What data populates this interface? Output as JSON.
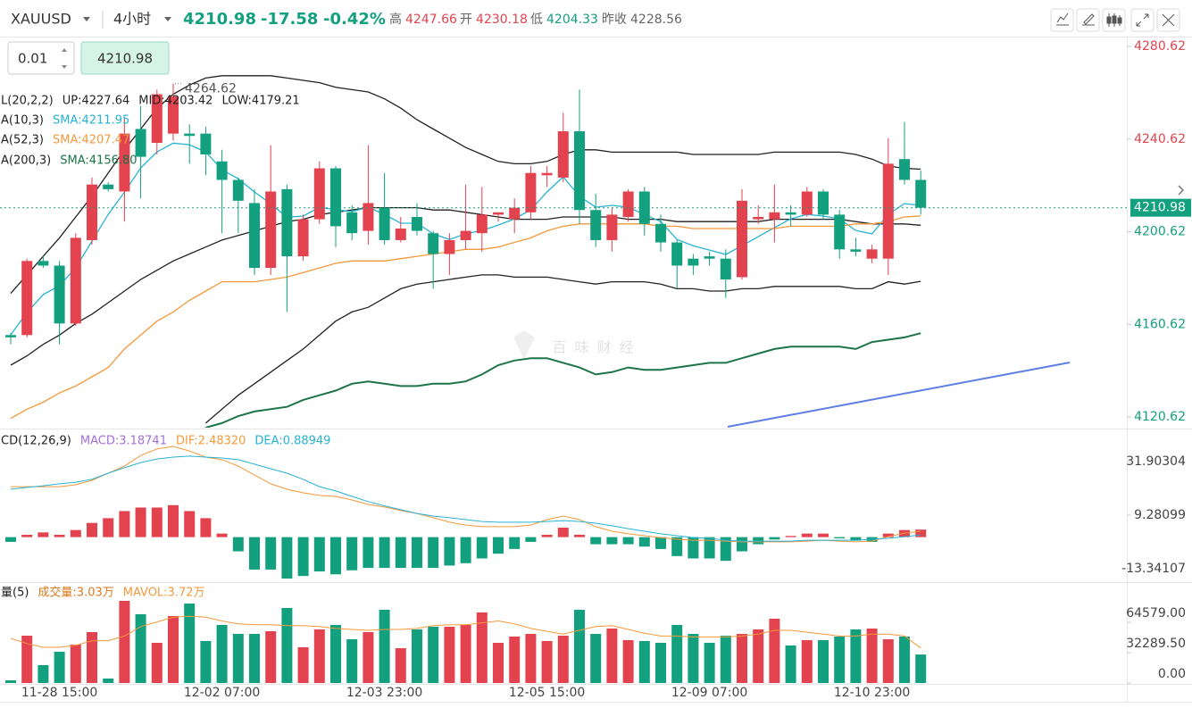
{
  "header": {
    "symbol": "XAUUSD",
    "interval": "4小时",
    "price": "4210.98",
    "change": "-17.58",
    "change_percent": "-0.42%",
    "stats": [
      {
        "label": "高",
        "value": "4247.66"
      },
      {
        "label": "开",
        "value": "4230.18"
      },
      {
        "label": "低",
        "value": "4204.33"
      },
      {
        "label": "昨收",
        "value": "4228.56"
      }
    ]
  },
  "order_inputs": {
    "lots": "0.01",
    "price": "4210.98"
  },
  "watermark": "百 味 财 经",
  "chart_data": [
    {
      "type": "candlestick",
      "up_color": "#e2434f",
      "down_color": "#13a07e",
      "ylim": [
        4116.4,
        4284.5
      ],
      "yticks": [
        4280.62,
        4240.62,
        4200.62,
        4160.62,
        4120.62
      ],
      "high_label": "4264.62",
      "last_price_label": "4210.98",
      "indicator_labels": [
        "L(20,2,2)",
        "A(10,3)",
        "A(52,3)",
        "A(200,3)"
      ],
      "open": [
        4156,
        4156,
        4188,
        4186,
        4161,
        4197,
        4221,
        4218,
        4245,
        4239,
        4243,
        4243,
        4243,
        4231,
        4223,
        4213,
        4185,
        4219,
        4190,
        4206,
        4228,
        4209,
        4201,
        4211,
        4197,
        4207,
        4200,
        4191,
        4197,
        4200,
        4208,
        4206,
        4209,
        4225,
        4224,
        4244,
        4210,
        4197,
        4207,
        4218,
        4204,
        4196,
        4189,
        4190,
        4189,
        4181,
        4206,
        4206,
        4209,
        4208,
        4218,
        4208,
        4193,
        4189,
        4189,
        4232,
        4223
      ],
      "high": [
        4157,
        4189,
        4190,
        4188,
        4200,
        4224,
        4222,
        4250,
        4255,
        4262,
        4264.62,
        4247,
        4246,
        4236,
        4224,
        4219,
        4238,
        4221,
        4208,
        4231,
        4229,
        4212,
        4238,
        4226,
        4207,
        4213,
        4201,
        4200,
        4221,
        4220,
        4209,
        4215,
        4229,
        4229,
        4252,
        4262,
        4217,
        4211,
        4219,
        4220,
        4208,
        4197,
        4191,
        4192,
        4193,
        4219,
        4212,
        4221,
        4212,
        4220,
        4219,
        4210,
        4198,
        4195,
        4241,
        4248,
        4227
      ],
      "low": [
        4152,
        4155,
        4185,
        4152,
        4160,
        4195,
        4218,
        4205,
        4215,
        4234,
        4240,
        4230,
        4225,
        4200,
        4200,
        4182,
        4182,
        4166,
        4188,
        4204,
        4194,
        4197,
        4195,
        4195,
        4196,
        4199,
        4176,
        4182,
        4193,
        4192,
        4205,
        4200,
        4206,
        4220,
        4222,
        4204,
        4194,
        4192,
        4205,
        4199,
        4192,
        4176,
        4182,
        4186,
        4172,
        4180,
        4204,
        4196,
        4203,
        4207,
        4206,
        4189,
        4190,
        4187,
        4182,
        4221,
        4208
      ],
      "close": [
        4155,
        4188,
        4186,
        4161,
        4198,
        4221,
        4219,
        4243,
        4233,
        4260,
        4259,
        4242,
        4234,
        4223,
        4214,
        4185,
        4218,
        4190,
        4206,
        4228,
        4203,
        4200,
        4213,
        4197,
        4202,
        4201,
        4191,
        4197,
        4201,
        4208,
        4209,
        4211,
        4226,
        4226,
        4244,
        4210,
        4197,
        4208,
        4218,
        4204,
        4196,
        4186,
        4186,
        4189,
        4180,
        4214,
        4207,
        4209,
        4208,
        4218,
        4208,
        4193,
        4192,
        4193,
        4230,
        4223,
        4210.98
      ],
      "series": [
        {
          "name": "UP:4227.64",
          "color": "#222222",
          "values": [
            4174,
            4182,
            4190,
            4198,
            4207,
            4216,
            4226,
            4236,
            4245,
            4254,
            4260,
            4264,
            4267,
            4268,
            4268,
            4268,
            4268,
            4267,
            4266,
            4265,
            4263,
            4262,
            4261,
            4258,
            4254,
            4249,
            4245,
            4241,
            4237,
            4234,
            4231,
            4230,
            4230,
            4231,
            4234,
            4236,
            4236,
            4235,
            4235,
            4235,
            4235,
            4235,
            4234,
            4234,
            4234,
            4234,
            4234,
            4235,
            4235,
            4235,
            4235,
            4235,
            4234,
            4232,
            4229,
            4228,
            4227.64
          ]
        },
        {
          "name": "MID:4203.42",
          "color": "#222222",
          "values": [
            4143,
            4147,
            4152,
            4156,
            4161,
            4165,
            4170,
            4175,
            4180,
            4184,
            4188,
            4191,
            4194,
            4197,
            4199,
            4201,
            4203,
            4205,
            4206,
            4208,
            4209,
            4210,
            4211,
            4211,
            4211,
            4211,
            4210,
            4210,
            4209,
            4208,
            4207,
            4206,
            4206,
            4206,
            4207,
            4207,
            4207,
            4207,
            4206,
            4206,
            4206,
            4205,
            4205,
            4205,
            4205,
            4205,
            4205,
            4206,
            4206,
            4206,
            4206,
            4206,
            4205,
            4204,
            4204,
            4204,
            4203.42
          ]
        },
        {
          "name": "LOW:4179.21",
          "color": "#222222",
          "values": [
            null,
            null,
            null,
            null,
            null,
            null,
            null,
            null,
            null,
            null,
            null,
            null,
            4118,
            4124,
            4130,
            4135,
            4140,
            4145,
            4150,
            4156,
            4162,
            4166,
            4168,
            4172,
            4176,
            4178,
            4179,
            4180,
            4181,
            4182,
            4182,
            4181,
            4181,
            4181,
            4180,
            4179,
            4178,
            4179,
            4179,
            4179,
            4178,
            4176,
            4176,
            4175,
            4175,
            4176,
            4176,
            4177,
            4177,
            4177,
            4177,
            4177,
            4176,
            4176,
            4179,
            4178,
            4179.21
          ]
        },
        {
          "name": "SMA:4211.95",
          "color": "#27b3d3",
          "values": [
            4156.1,
            4165.7,
            4173.5,
            4177.3,
            4185.0,
            4196.6,
            4208.1,
            4217.7,
            4228.2,
            4235.1,
            4238.9,
            4238.2,
            4235.1,
            4227.4,
            4223.5,
            4217.8,
            4212.7,
            4206.9,
            4207.4,
            4211.2,
            4210.1,
            4209.3,
            4211.2,
            4208.1,
            4204.3,
            4204.3,
            4199.7,
            4197.3,
            4199.7,
            4201.2,
            4203.5,
            4206.2,
            4210.1,
            4217.8,
            4224.3,
            4215.9,
            4211.2,
            4212.0,
            4211.2,
            4208.1,
            4205.0,
            4197.3,
            4194.6,
            4192.7,
            4190.8,
            4194.6,
            4198.5,
            4202.4,
            4206.2,
            4208.1,
            4207.4,
            4206.2,
            4201.2,
            4199.7,
            4208.1,
            4212.8,
            4211.95
          ]
        },
        {
          "name": "SMA:4207.47",
          "color": "#f4993c",
          "values": [
            4120,
            4124,
            4127,
            4131,
            4134,
            4138,
            4142,
            4150,
            4156,
            4162,
            4166,
            4171,
            4175,
            4179,
            4179,
            4179,
            4180,
            4181,
            4183,
            4185,
            4187,
            4188,
            4188,
            4188,
            4189,
            4190,
            4191,
            4192,
            4193,
            4193,
            4194,
            4196,
            4198,
            4201,
            4203,
            4204,
            4204,
            4204,
            4204,
            4204,
            4203,
            4203,
            4202,
            4202,
            4202,
            4202,
            4202,
            4202,
            4203,
            4203,
            4203,
            4203,
            4204,
            4204,
            4205,
            4207,
            4207.47
          ]
        },
        {
          "name": "SMA:4156.80",
          "color": "#1d7449",
          "values": [
            null,
            null,
            null,
            null,
            null,
            null,
            null,
            null,
            null,
            null,
            null,
            null,
            4116,
            4118,
            4121,
            4123,
            4124,
            4125,
            4128,
            4130,
            4132,
            4135,
            4136,
            4135,
            4134,
            4134,
            4135,
            4135,
            4136,
            4139,
            4143,
            4145,
            4146,
            4146,
            4144,
            4142,
            4139,
            4140,
            4142,
            4141,
            4141,
            4142,
            4143,
            4144,
            4144,
            4146,
            4148,
            4150,
            4151,
            4151,
            4151,
            4151,
            4150,
            4153,
            4154,
            4155,
            4156.8
          ]
        }
      ]
    },
    {
      "type": "macd",
      "up_color": "#e2434f",
      "down_color": "#13a07e",
      "ylim": [
        -18.24,
        44.72
      ],
      "yticks": [
        31.90304,
        9.28099,
        -13.34107
      ],
      "indicator_label": "CD(12,26,9)",
      "series": [
        {
          "name": "MACD:3.18741",
          "color": "#a46fd8",
          "values": [
            -2,
            1,
            2,
            1,
            3,
            6,
            8,
            11,
            12.5,
            12.5,
            13.5,
            11,
            8,
            1.5,
            -6,
            -13.7,
            -13.7,
            -17.5,
            -16.4,
            -14.5,
            -15.7,
            -14,
            -13,
            -13,
            -13,
            -13,
            -13,
            -12,
            -11,
            -9,
            -7,
            -5,
            -2,
            1,
            4,
            1,
            -3,
            -3,
            -3,
            -4,
            -5,
            -8,
            -9,
            -9,
            -10,
            -6,
            -3,
            -1,
            0.5,
            1.5,
            1.5,
            -0.5,
            -1.5,
            -2,
            1.5,
            3,
            3.18741
          ]
        },
        {
          "name": "DIF:2.48320",
          "color": "#f4993c",
          "values": [
            21.3,
            21.3,
            21.3,
            21.3,
            22.1,
            24.0,
            27.0,
            30.0,
            34.5,
            37.2,
            38.3,
            36.4,
            33.8,
            32.7,
            30.0,
            26.2,
            22.5,
            20.2,
            18.7,
            17.6,
            17.2,
            15.7,
            13.8,
            12.7,
            11.2,
            10.0,
            8.2,
            6.3,
            5.1,
            4.4,
            4.4,
            4.4,
            5.1,
            7.4,
            8.9,
            7.4,
            4.4,
            2.5,
            1.4,
            0.6,
            -0.2,
            -0.9,
            -1.3,
            -1.3,
            -1.7,
            -2.0,
            -2.0,
            -2.0,
            -2.0,
            -1.7,
            -1.3,
            -1.7,
            -2.0,
            -1.7,
            0.2,
            1.7,
            2.4832
          ]
        },
        {
          "name": "DEA:0.88949",
          "color": "#27b3d3",
          "values": [
            20.2,
            21.0,
            21.7,
            22.5,
            23.2,
            24.4,
            27.0,
            29.3,
            31.5,
            33.0,
            33.8,
            34.2,
            33.8,
            33.4,
            32.7,
            30.8,
            28.9,
            27.0,
            24.4,
            21.3,
            19.5,
            17.2,
            15.0,
            13.2,
            11.6,
            10.0,
            8.9,
            8.2,
            7.4,
            6.6,
            6.3,
            6.3,
            6.3,
            6.6,
            7.0,
            6.6,
            5.9,
            4.8,
            3.6,
            2.5,
            1.4,
            0.6,
            -0.2,
            -0.5,
            -1.3,
            -1.7,
            -1.7,
            -1.7,
            -1.7,
            -1.3,
            -1.3,
            -1.3,
            -1.3,
            -0.9,
            -0.5,
            0.2,
            0.88949
          ]
        }
      ]
    },
    {
      "type": "bar",
      "up_color": "#e2434f",
      "down_color": "#13a07e",
      "ylim": [
        0,
        104470
      ],
      "yticks": [
        {
          "value": 64579,
          "label": "64579.00"
        },
        {
          "value": 32289.5,
          "label": "32289.50"
        },
        {
          "value": 0,
          "label": "0.00"
        }
      ],
      "indicator_label": "量(5)",
      "categories": [
        null,
        null,
        null,
        "11-28 15:00",
        null,
        null,
        null,
        null,
        null,
        null,
        null,
        null,
        null,
        "12-02 07:00",
        null,
        null,
        null,
        null,
        null,
        null,
        null,
        null,
        null,
        "12-03 23:00",
        null,
        null,
        null,
        null,
        null,
        null,
        null,
        null,
        null,
        "12-05 15:00",
        null,
        null,
        null,
        null,
        null,
        null,
        null,
        null,
        null,
        "12-09 07:00",
        null,
        null,
        null,
        null,
        null,
        null,
        null,
        null,
        null,
        "12-10 23:00",
        null,
        null,
        null
      ],
      "series": [
        {
          "name": "成交量:3.03万",
          "color": "#d97a1a",
          "values": [
            2850,
            50350,
            19000,
            33250,
            40850,
            54150,
            4750,
            87400,
            73150,
            42750,
            71250,
            84550,
            44650,
            61750,
            52250,
            52250,
            55100,
            79800,
            38000,
            57000,
            61750,
            46550,
            54150,
            77900,
            37050,
            57000,
            59850,
            59850,
            61750,
            75050,
            42750,
            49400,
            52250,
            44650,
            50350,
            77900,
            52250,
            57950,
            45600,
            44650,
            42750,
            61750,
            52250,
            42750,
            50350,
            52250,
            57000,
            68400,
            39900,
            45600,
            45600,
            49400,
            57000,
            57950,
            46550,
            49400,
            30300
          ]
        },
        {
          "name": "MAVOL:3.72万",
          "color": "#f4993c",
          "values": [
            47500,
            42000,
            38000,
            38000,
            40000,
            45000,
            45000,
            50000,
            60000,
            65000,
            70000,
            71000,
            70000,
            66000,
            63000,
            62000,
            62000,
            61000,
            61000,
            60000,
            58000,
            57000,
            56000,
            57000,
            57000,
            58000,
            61000,
            62000,
            62000,
            64000,
            66000,
            63000,
            58000,
            55000,
            52000,
            56000,
            60000,
            61000,
            57000,
            53000,
            50000,
            50000,
            49000,
            49000,
            49000,
            50000,
            52000,
            56000,
            56000,
            54000,
            52000,
            50000,
            50000,
            52000,
            52000,
            50000,
            37200
          ]
        }
      ]
    }
  ]
}
